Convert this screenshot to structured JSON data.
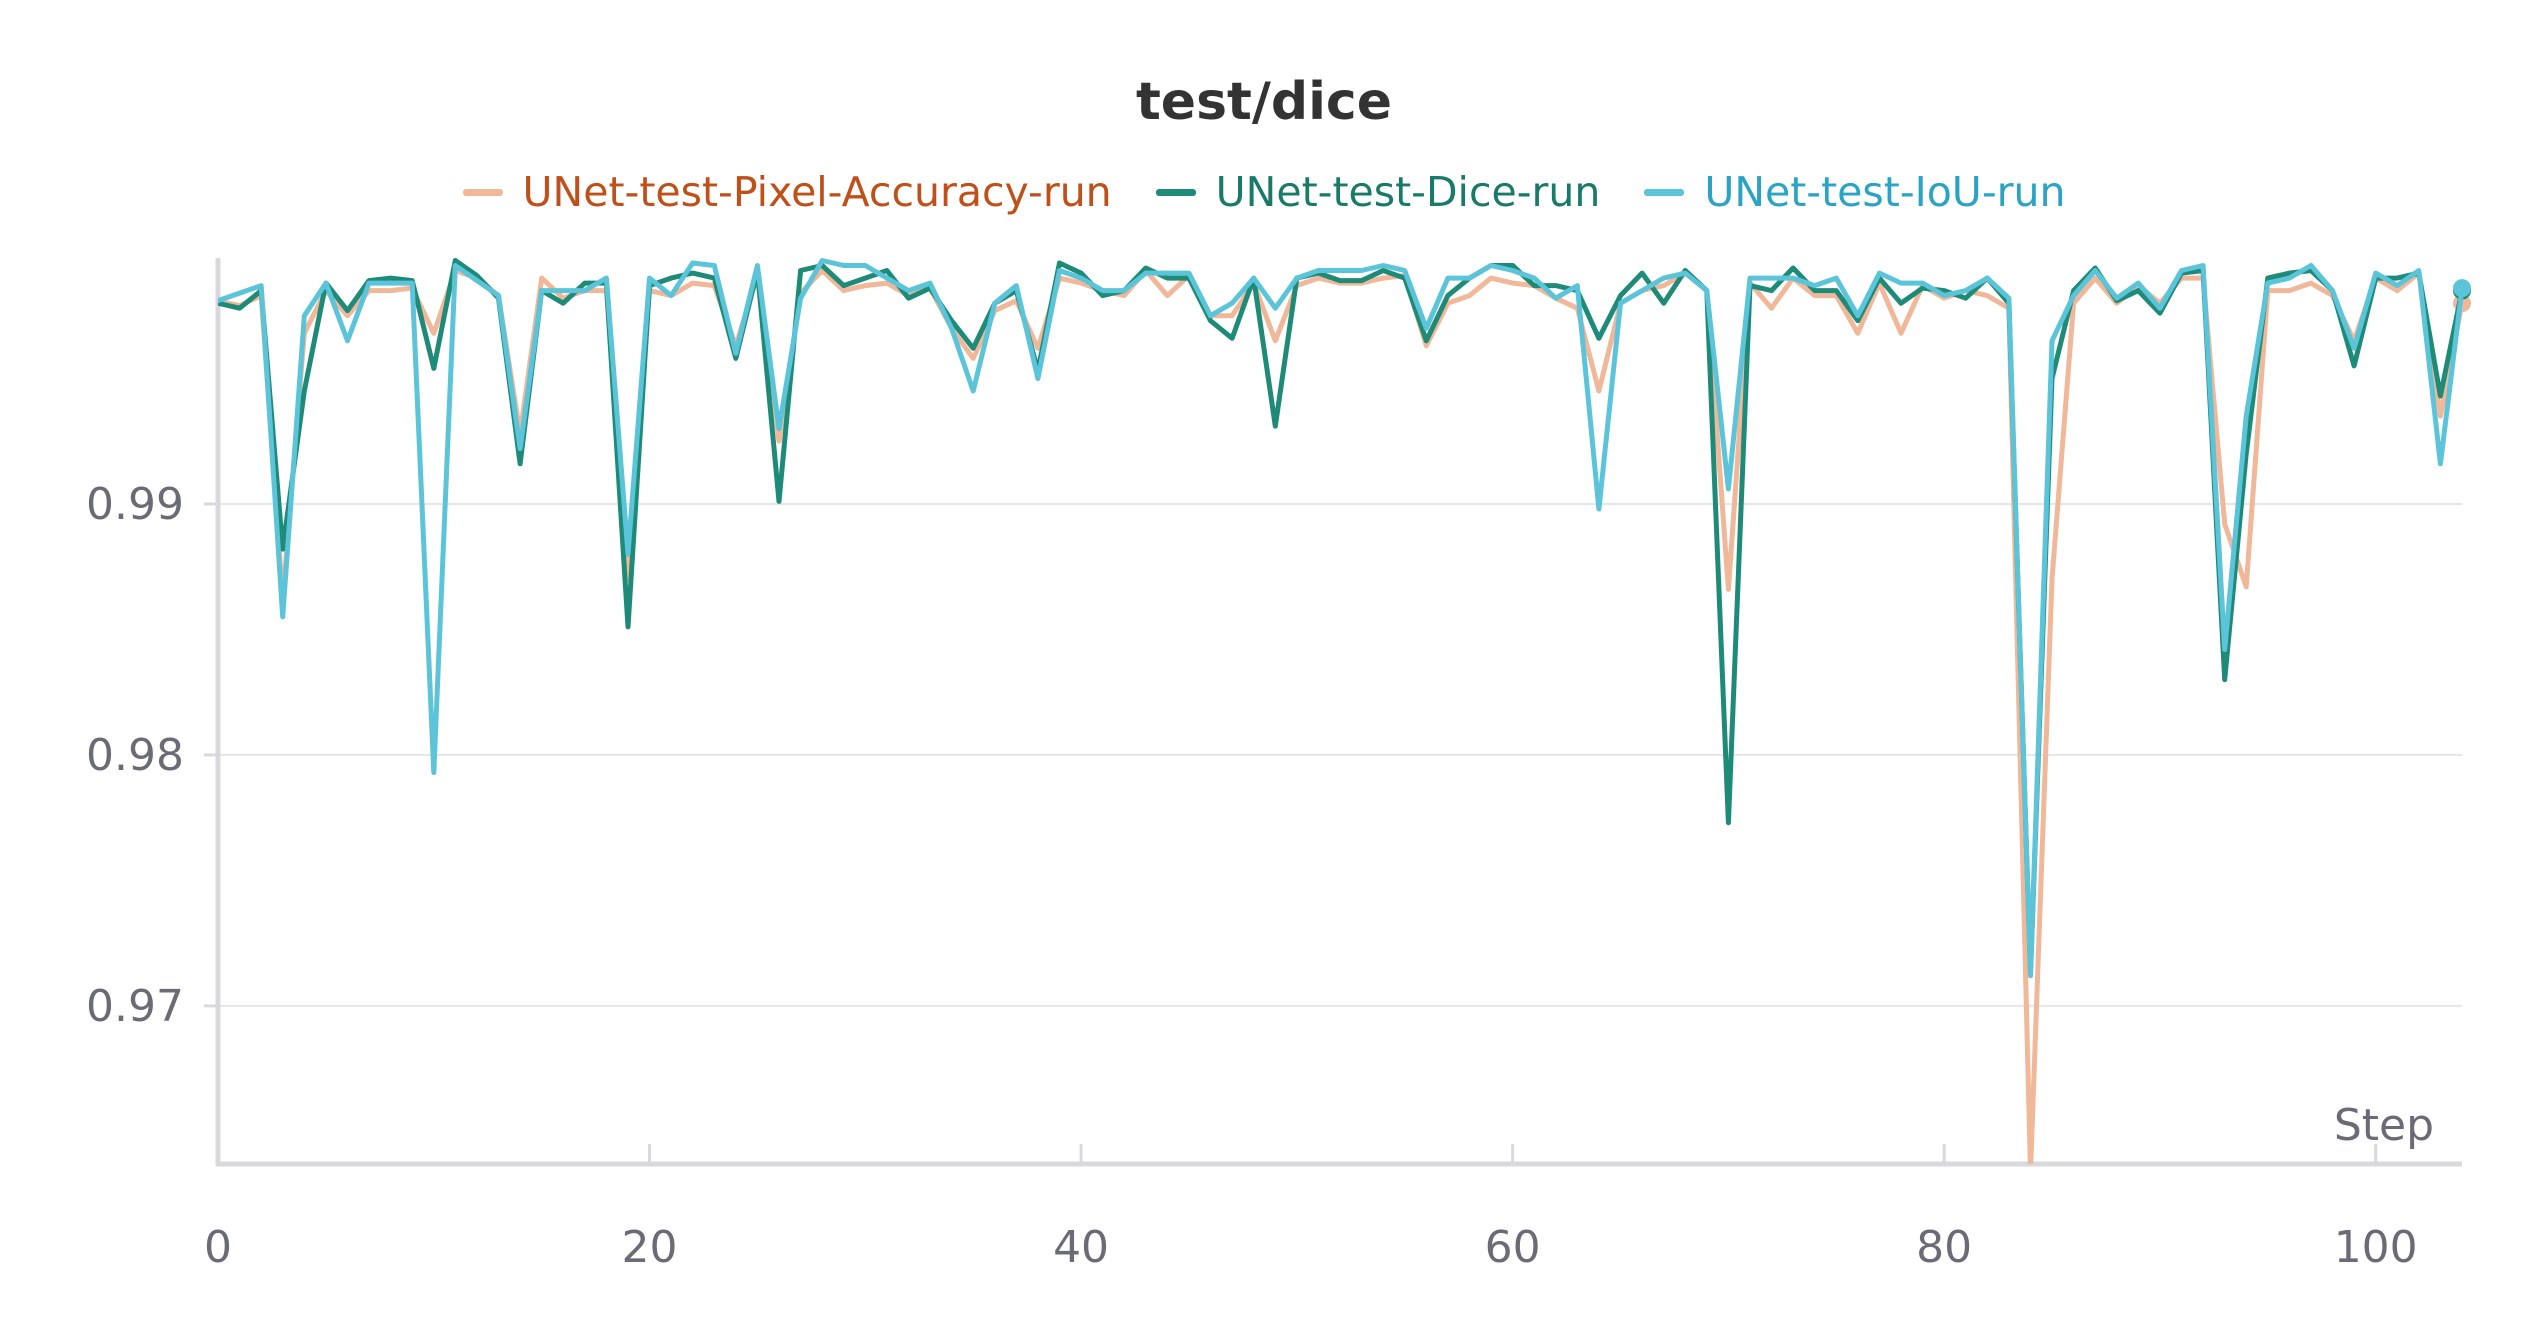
{
  "chart_data": {
    "type": "line",
    "title": "test/dice",
    "xlabel": "Step",
    "ylabel": "",
    "xlim": [
      0,
      104
    ],
    "ylim": [
      0.9637,
      0.9998
    ],
    "x_ticks": [
      0,
      20,
      40,
      60,
      80,
      100
    ],
    "y_ticks": [
      0.97,
      0.98,
      0.99
    ],
    "y_tick_labels": [
      "0.97",
      "0.98",
      "0.99"
    ],
    "grid": "horizontal",
    "legend_position": "top-center",
    "x": [
      0,
      1,
      2,
      3,
      4,
      5,
      6,
      7,
      8,
      9,
      10,
      11,
      12,
      13,
      14,
      15,
      16,
      17,
      18,
      19,
      20,
      21,
      22,
      23,
      24,
      25,
      26,
      27,
      28,
      29,
      30,
      31,
      32,
      33,
      34,
      35,
      36,
      37,
      38,
      39,
      40,
      41,
      42,
      43,
      44,
      45,
      46,
      47,
      48,
      49,
      50,
      51,
      52,
      53,
      54,
      55,
      56,
      57,
      58,
      59,
      60,
      61,
      62,
      63,
      64,
      65,
      66,
      67,
      68,
      69,
      70,
      71,
      72,
      73,
      74,
      75,
      76,
      77,
      78,
      79,
      80,
      81,
      82,
      83,
      84,
      85,
      86,
      87,
      88,
      89,
      90,
      91,
      92,
      93,
      94,
      95,
      96,
      97,
      98,
      99,
      100,
      101,
      102,
      103,
      104
    ],
    "series": [
      {
        "name": "UNet-test-Pixel-Accuracy-run",
        "color": "#f0b798",
        "label_color": "#c0501a",
        "values": [
          0.9981,
          0.9979,
          0.9983,
          0.9862,
          0.9968,
          0.9985,
          0.9975,
          0.9985,
          0.9985,
          0.9986,
          0.9968,
          0.9993,
          0.999,
          0.9983,
          0.9928,
          0.999,
          0.9982,
          0.9985,
          0.9985,
          0.987,
          0.9985,
          0.9983,
          0.9988,
          0.9987,
          0.9963,
          0.9991,
          0.9925,
          0.9984,
          0.9993,
          0.9985,
          0.9987,
          0.9988,
          0.9983,
          0.9986,
          0.997,
          0.9958,
          0.9977,
          0.9981,
          0.9962,
          0.999,
          0.9988,
          0.9985,
          0.9983,
          0.9993,
          0.9983,
          0.9991,
          0.9975,
          0.9975,
          0.9988,
          0.9965,
          0.9987,
          0.999,
          0.9988,
          0.9988,
          0.999,
          0.9991,
          0.9963,
          0.998,
          0.9983,
          0.999,
          0.9988,
          0.9987,
          0.9982,
          0.9978,
          0.9945,
          0.998,
          0.9985,
          0.9987,
          0.9992,
          0.9985,
          0.9866,
          0.9988,
          0.9978,
          0.999,
          0.9983,
          0.9983,
          0.9968,
          0.9988,
          0.9968,
          0.9987,
          0.9982,
          0.9985,
          0.9983,
          0.9978,
          0.9634,
          0.987,
          0.998,
          0.999,
          0.998,
          0.9987,
          0.998,
          0.999,
          0.999,
          0.9892,
          0.9867,
          0.9985,
          0.9985,
          0.9988,
          0.9983,
          0.9965,
          0.999,
          0.9985,
          0.9992,
          0.9935,
          0.998
        ]
      },
      {
        "name": "UNet-test-Dice-run",
        "color": "#1e8a78",
        "label_color": "#1a7a69",
        "values": [
          0.998,
          0.9978,
          0.9985,
          0.9882,
          0.9945,
          0.9988,
          0.9977,
          0.9989,
          0.999,
          0.9989,
          0.9954,
          0.9997,
          0.9991,
          0.9982,
          0.9916,
          0.9985,
          0.998,
          0.9988,
          0.9988,
          0.9851,
          0.9987,
          0.999,
          0.9992,
          0.999,
          0.9958,
          0.9993,
          0.9901,
          0.9993,
          0.9995,
          0.9987,
          0.999,
          0.9993,
          0.9982,
          0.9986,
          0.9973,
          0.9962,
          0.998,
          0.9985,
          0.9953,
          0.9996,
          0.9992,
          0.9983,
          0.9985,
          0.9994,
          0.999,
          0.999,
          0.9973,
          0.9966,
          0.999,
          0.9931,
          0.999,
          0.9992,
          0.9989,
          0.9989,
          0.9993,
          0.999,
          0.9965,
          0.9983,
          0.999,
          0.9995,
          0.9995,
          0.9987,
          0.9987,
          0.9985,
          0.9966,
          0.9983,
          0.9992,
          0.998,
          0.9993,
          0.9985,
          0.9773,
          0.9987,
          0.9985,
          0.9994,
          0.9985,
          0.9985,
          0.9973,
          0.999,
          0.998,
          0.9986,
          0.9985,
          0.9982,
          0.999,
          0.998,
          0.9713,
          0.995,
          0.9985,
          0.9994,
          0.9981,
          0.9985,
          0.9976,
          0.9992,
          0.9993,
          0.983,
          0.992,
          0.999,
          0.9992,
          0.9993,
          0.9985,
          0.9955,
          0.999,
          0.999,
          0.9992,
          0.9943,
          0.9985
        ]
      },
      {
        "name": "UNet-test-IoU-run",
        "color": "#5bc4d9",
        "label_color": "#2ba3c4",
        "values": [
          0.9981,
          0.9984,
          0.9987,
          0.9855,
          0.9975,
          0.9988,
          0.9965,
          0.9988,
          0.9988,
          0.9988,
          0.9793,
          0.9995,
          0.9989,
          0.9983,
          0.9922,
          0.9985,
          0.9985,
          0.9985,
          0.999,
          0.988,
          0.999,
          0.9983,
          0.9996,
          0.9995,
          0.996,
          0.9995,
          0.993,
          0.9982,
          0.9997,
          0.9995,
          0.9995,
          0.999,
          0.9985,
          0.9988,
          0.997,
          0.9945,
          0.998,
          0.9987,
          0.995,
          0.9993,
          0.999,
          0.9985,
          0.9985,
          0.9992,
          0.9992,
          0.9992,
          0.9975,
          0.998,
          0.999,
          0.9978,
          0.999,
          0.9993,
          0.9993,
          0.9993,
          0.9995,
          0.9993,
          0.997,
          0.999,
          0.999,
          0.9995,
          0.9993,
          0.999,
          0.9982,
          0.9987,
          0.9898,
          0.998,
          0.9985,
          0.999,
          0.9992,
          0.9985,
          0.9906,
          0.999,
          0.999,
          0.999,
          0.9987,
          0.999,
          0.9975,
          0.9992,
          0.9988,
          0.9988,
          0.9983,
          0.9985,
          0.999,
          0.9982,
          0.9712,
          0.9965,
          0.9983,
          0.9993,
          0.9982,
          0.9988,
          0.9978,
          0.9993,
          0.9995,
          0.9842,
          0.9935,
          0.9988,
          0.999,
          0.9995,
          0.9985,
          0.9962,
          0.9992,
          0.9987,
          0.9993,
          0.9916,
          0.9986
        ]
      }
    ]
  }
}
